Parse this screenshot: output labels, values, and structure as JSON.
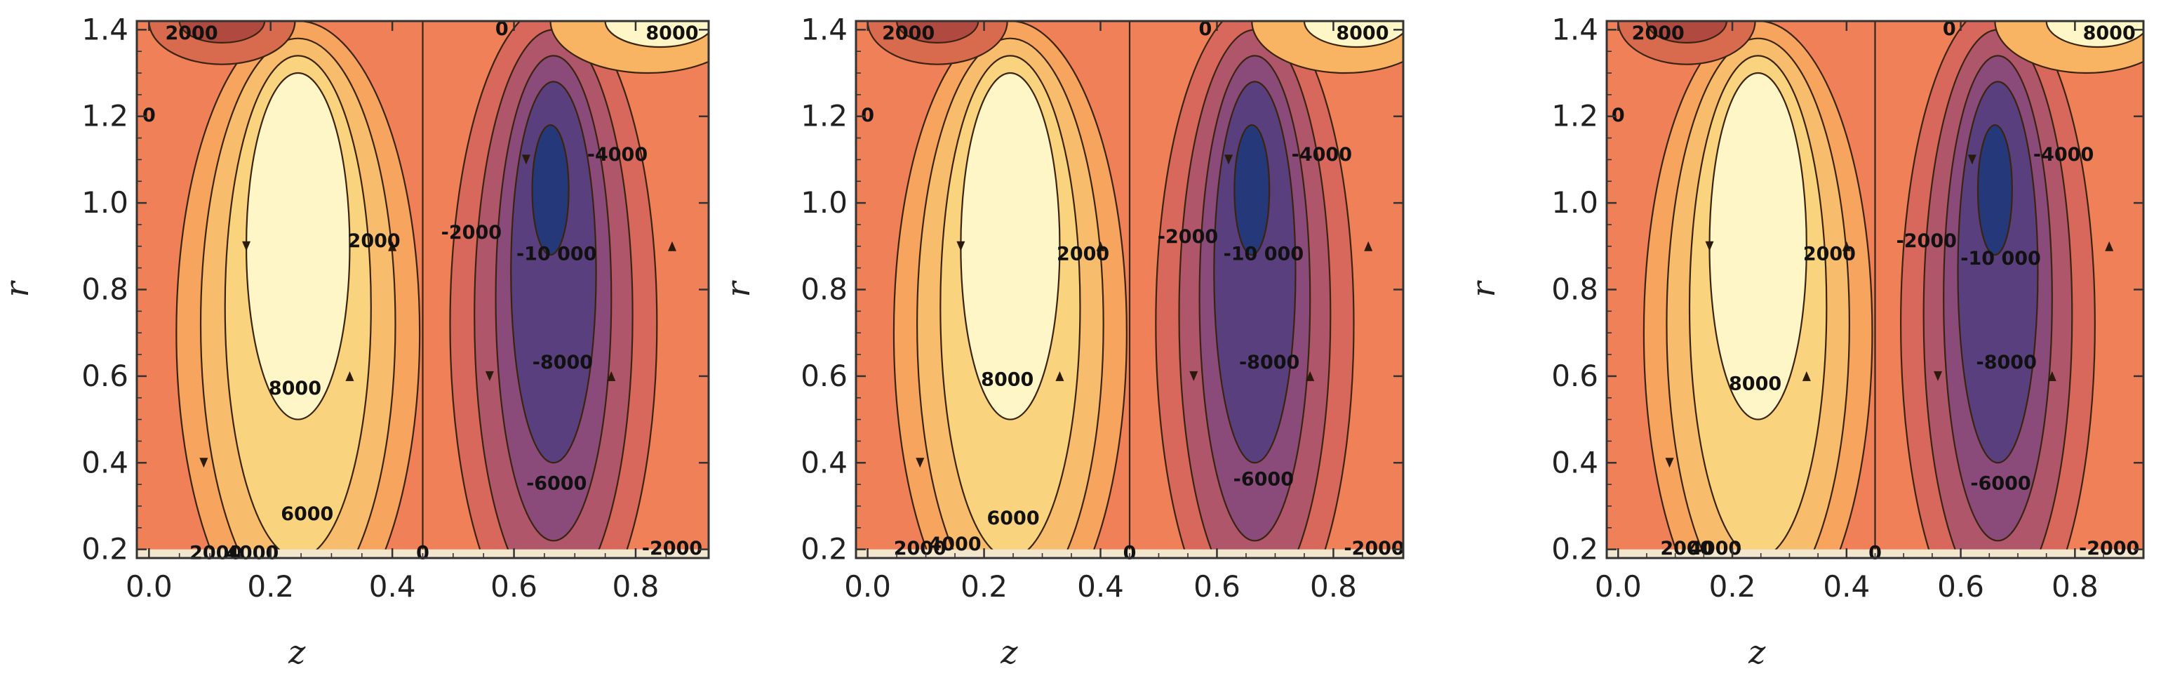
{
  "colors": {
    "background_field": "#f08058",
    "cold_core": "#24387a",
    "warm_core": "#fff6c8",
    "mid_warm": "#f7c26a",
    "mid_cold": "#8a4a7a",
    "contour_line": "#3a2410",
    "frame": "#333333"
  },
  "chart_data": [
    {
      "type": "heatmap",
      "title": "",
      "xlabel": "z",
      "ylabel": "r",
      "xlim": [
        -0.02,
        0.92
      ],
      "ylim": [
        0.18,
        1.42
      ],
      "xticks": [
        "0.0",
        "0.2",
        "0.4",
        "0.6",
        "0.8"
      ],
      "yticks": [
        "0.2",
        "0.4",
        "0.6",
        "0.8",
        "1.0",
        "1.2",
        "1.4"
      ],
      "contour_labels": [
        {
          "text": "2000",
          "x": 0.37,
          "y": 0.91
        },
        {
          "text": "8000",
          "x": 0.24,
          "y": 0.57
        },
        {
          "text": "6000",
          "x": 0.26,
          "y": 0.28
        },
        {
          "text": "2000",
          "x": 0.11,
          "y": 0.19
        },
        {
          "text": "4000",
          "x": 0.17,
          "y": 0.19
        },
        {
          "text": "-2000",
          "x": 0.53,
          "y": 0.93
        },
        {
          "text": "-10 000",
          "x": 0.67,
          "y": 0.88
        },
        {
          "text": "-4000",
          "x": 0.77,
          "y": 1.11
        },
        {
          "text": "-8000",
          "x": 0.68,
          "y": 0.63
        },
        {
          "text": "-6000",
          "x": 0.67,
          "y": 0.35
        },
        {
          "text": "-2000",
          "x": 0.86,
          "y": 0.2
        },
        {
          "text": "0",
          "x": 0.0,
          "y": 1.2
        },
        {
          "text": "0",
          "x": 0.45,
          "y": 0.19
        },
        {
          "text": "0",
          "x": 0.58,
          "y": 1.4
        },
        {
          "text": "2000",
          "x": 0.07,
          "y": 1.39
        },
        {
          "text": "8000",
          "x": 0.86,
          "y": 1.39
        }
      ]
    },
    {
      "type": "heatmap",
      "title": "",
      "xlabel": "z",
      "ylabel": "r",
      "xlim": [
        -0.02,
        0.92
      ],
      "ylim": [
        0.18,
        1.42
      ],
      "xticks": [
        "0.0",
        "0.2",
        "0.4",
        "0.6",
        "0.8"
      ],
      "yticks": [
        "0.2",
        "0.4",
        "0.6",
        "0.8",
        "1.0",
        "1.2",
        "1.4"
      ],
      "contour_labels": [
        {
          "text": "2000",
          "x": 0.37,
          "y": 0.88
        },
        {
          "text": "8000",
          "x": 0.24,
          "y": 0.59
        },
        {
          "text": "6000",
          "x": 0.25,
          "y": 0.27
        },
        {
          "text": "2000",
          "x": 0.09,
          "y": 0.2
        },
        {
          "text": "4000",
          "x": 0.15,
          "y": 0.21
        },
        {
          "text": "-2000",
          "x": 0.55,
          "y": 0.92
        },
        {
          "text": "-10 000",
          "x": 0.68,
          "y": 0.88
        },
        {
          "text": "-4000",
          "x": 0.78,
          "y": 1.11
        },
        {
          "text": "-8000",
          "x": 0.69,
          "y": 0.63
        },
        {
          "text": "-6000",
          "x": 0.68,
          "y": 0.36
        },
        {
          "text": "-2000",
          "x": 0.87,
          "y": 0.2
        },
        {
          "text": "0",
          "x": 0.0,
          "y": 1.2
        },
        {
          "text": "0",
          "x": 0.45,
          "y": 0.19
        },
        {
          "text": "0",
          "x": 0.58,
          "y": 1.4
        },
        {
          "text": "2000",
          "x": 0.07,
          "y": 1.39
        },
        {
          "text": "8000",
          "x": 0.85,
          "y": 1.39
        }
      ]
    },
    {
      "type": "heatmap",
      "title": "",
      "xlabel": "z",
      "ylabel": "r",
      "xlim": [
        -0.02,
        0.92
      ],
      "ylim": [
        0.18,
        1.42
      ],
      "xticks": [
        "0.0",
        "0.2",
        "0.4",
        "0.6",
        "0.8"
      ],
      "yticks": [
        "0.2",
        "0.4",
        "0.6",
        "0.8",
        "1.0",
        "1.2",
        "1.4"
      ],
      "contour_labels": [
        {
          "text": "2000",
          "x": 0.37,
          "y": 0.88
        },
        {
          "text": "8000",
          "x": 0.24,
          "y": 0.58
        },
        {
          "text": "-2000",
          "x": 0.54,
          "y": 0.91
        },
        {
          "text": "-10 000",
          "x": 0.67,
          "y": 0.87
        },
        {
          "text": "-4000",
          "x": 0.78,
          "y": 1.11
        },
        {
          "text": "-8000",
          "x": 0.68,
          "y": 0.63
        },
        {
          "text": "-6000",
          "x": 0.67,
          "y": 0.35
        },
        {
          "text": "-2000",
          "x": 0.86,
          "y": 0.2
        },
        {
          "text": "2000",
          "x": 0.12,
          "y": 0.2
        },
        {
          "text": "4000",
          "x": 0.17,
          "y": 0.2
        },
        {
          "text": "0",
          "x": 0.0,
          "y": 1.2
        },
        {
          "text": "0",
          "x": 0.45,
          "y": 0.19
        },
        {
          "text": "0",
          "x": 0.58,
          "y": 1.4
        },
        {
          "text": "2000",
          "x": 0.07,
          "y": 1.39
        },
        {
          "text": "8000",
          "x": 0.86,
          "y": 1.39
        }
      ]
    }
  ]
}
